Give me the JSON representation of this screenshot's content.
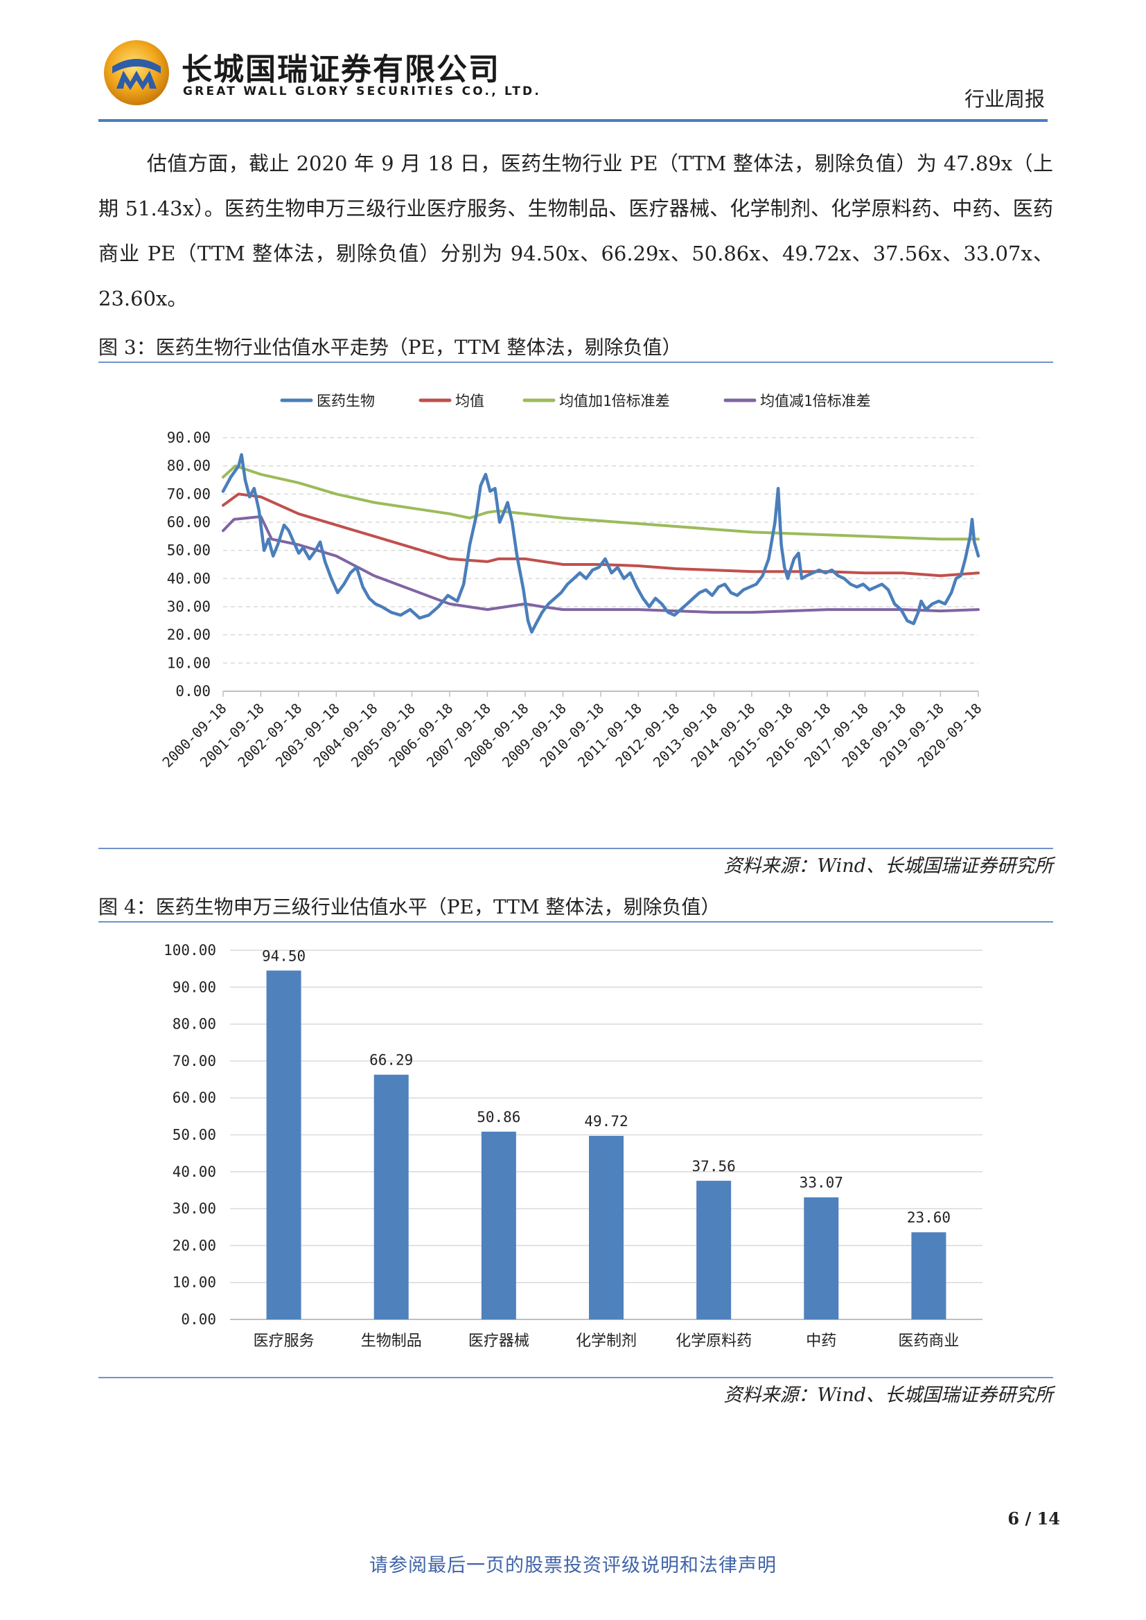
{
  "header": {
    "company_cn": "长城国瑞证券有限公司",
    "company_en": "GREAT WALL GLORY SECURITIES CO., LTD.",
    "report_type": "行业周报"
  },
  "body": {
    "paragraph": "估值方面，截止 2020 年 9 月 18 日，医药生物行业 PE（TTM 整体法，剔除负值）为 47.89x（上期 51.43x）。医药生物申万三级行业医疗服务、生物制品、医疗器械、化学制剂、化学原料药、中药、医药商业 PE（TTM 整体法，剔除负值）分别为 94.50x、66.29x、50.86x、49.72x、37.56x、33.07x、23.60x。"
  },
  "figure3": {
    "caption": "图 3：医药生物行业估值水平走势（PE，TTM 整体法，剔除负值）",
    "source": "资料来源：Wind、长城国瑞证券研究所"
  },
  "figure4": {
    "caption": "图 4：医药生物申万三级行业估值水平（PE，TTM 整体法，剔除负值）",
    "source": "资料来源：Wind、长城国瑞证券研究所"
  },
  "colors": {
    "series_blue": "#4a7ebb",
    "series_red": "#c0504d",
    "series_green": "#9bbb59",
    "series_purple": "#8064a2",
    "bar_blue": "#4f81bd",
    "rule_blue": "#4a7dc0"
  },
  "chart_data": [
    {
      "type": "line",
      "ylim": [
        0,
        90
      ],
      "yticks": [
        "0.00",
        "10.00",
        "20.00",
        "30.00",
        "40.00",
        "50.00",
        "60.00",
        "70.00",
        "80.00",
        "90.00"
      ],
      "x": [
        "2000-09-18",
        "2001-09-18",
        "2002-09-18",
        "2003-09-18",
        "2004-09-18",
        "2005-09-18",
        "2006-09-18",
        "2007-09-18",
        "2008-09-18",
        "2009-09-18",
        "2010-09-18",
        "2011-09-18",
        "2012-09-18",
        "2013-09-18",
        "2014-09-18",
        "2015-09-18",
        "2016-09-18",
        "2017-09-18",
        "2018-09-18",
        "2019-09-18",
        "2020-09-18"
      ],
      "grid": true,
      "legend": "top",
      "series": [
        {
          "name": "医药生物",
          "color": "#4a7ebb",
          "points": [
            [
              "2000-09-18",
              71
            ],
            [
              "2000-12-01",
              76
            ],
            [
              "2001-02-15",
              80
            ],
            [
              "2001-03-15",
              84
            ],
            [
              "2001-04-20",
              75
            ],
            [
              "2001-06-01",
              69
            ],
            [
              "2001-07-15",
              72
            ],
            [
              "2001-09-01",
              64
            ],
            [
              "2001-10-20",
              50
            ],
            [
              "2001-12-01",
              54
            ],
            [
              "2002-01-15",
              48
            ],
            [
              "2002-03-01",
              52
            ],
            [
              "2002-05-01",
              59
            ],
            [
              "2002-06-15",
              57
            ],
            [
              "2002-08-01",
              53
            ],
            [
              "2002-09-20",
              49
            ],
            [
              "2002-11-01",
              51
            ],
            [
              "2003-01-01",
              47
            ],
            [
              "2003-03-01",
              50
            ],
            [
              "2003-04-15",
              53
            ],
            [
              "2003-06-01",
              46
            ],
            [
              "2003-08-01",
              40
            ],
            [
              "2003-10-01",
              35
            ],
            [
              "2003-12-01",
              38
            ],
            [
              "2004-02-01",
              42
            ],
            [
              "2004-04-01",
              44
            ],
            [
              "2004-06-01",
              37
            ],
            [
              "2004-08-01",
              33
            ],
            [
              "2004-10-01",
              31
            ],
            [
              "2004-12-01",
              30
            ],
            [
              "2005-03-01",
              28
            ],
            [
              "2005-06-01",
              27
            ],
            [
              "2005-09-01",
              29
            ],
            [
              "2005-12-01",
              26
            ],
            [
              "2006-03-01",
              27
            ],
            [
              "2006-06-01",
              30
            ],
            [
              "2006-09-01",
              34
            ],
            [
              "2006-12-01",
              32
            ],
            [
              "2007-02-01",
              38
            ],
            [
              "2007-04-01",
              52
            ],
            [
              "2007-06-01",
              62
            ],
            [
              "2007-07-15",
              73
            ],
            [
              "2007-09-01",
              77
            ],
            [
              "2007-10-15",
              71
            ],
            [
              "2007-12-01",
              72
            ],
            [
              "2008-01-15",
              60
            ],
            [
              "2008-03-01",
              64
            ],
            [
              "2008-04-01",
              67
            ],
            [
              "2008-05-15",
              60
            ],
            [
              "2008-07-01",
              48
            ],
            [
              "2008-09-01",
              36
            ],
            [
              "2008-10-15",
              25
            ],
            [
              "2008-11-20",
              21
            ],
            [
              "2009-01-01",
              24
            ],
            [
              "2009-03-01",
              28
            ],
            [
              "2009-05-01",
              31
            ],
            [
              "2009-07-01",
              33
            ],
            [
              "2009-09-01",
              35
            ],
            [
              "2009-11-01",
              38
            ],
            [
              "2010-01-01",
              40
            ],
            [
              "2010-03-01",
              42
            ],
            [
              "2010-05-01",
              40
            ],
            [
              "2010-07-01",
              43
            ],
            [
              "2010-09-01",
              44
            ],
            [
              "2010-11-01",
              47
            ],
            [
              "2011-01-01",
              42
            ],
            [
              "2011-03-01",
              44
            ],
            [
              "2011-05-01",
              40
            ],
            [
              "2011-07-01",
              42
            ],
            [
              "2011-09-01",
              37
            ],
            [
              "2011-11-01",
              33
            ],
            [
              "2012-01-01",
              30
            ],
            [
              "2012-03-01",
              33
            ],
            [
              "2012-05-01",
              31
            ],
            [
              "2012-07-01",
              28
            ],
            [
              "2012-09-01",
              27
            ],
            [
              "2012-11-01",
              29
            ],
            [
              "2013-01-01",
              31
            ],
            [
              "2013-03-01",
              33
            ],
            [
              "2013-05-01",
              35
            ],
            [
              "2013-07-01",
              36
            ],
            [
              "2013-09-01",
              34
            ],
            [
              "2013-11-01",
              37
            ],
            [
              "2014-01-01",
              38
            ],
            [
              "2014-03-01",
              35
            ],
            [
              "2014-05-01",
              34
            ],
            [
              "2014-07-01",
              36
            ],
            [
              "2014-09-01",
              37
            ],
            [
              "2014-11-01",
              38
            ],
            [
              "2015-01-01",
              41
            ],
            [
              "2015-03-01",
              47
            ],
            [
              "2015-05-01",
              60
            ],
            [
              "2015-06-01",
              72
            ],
            [
              "2015-07-01",
              52
            ],
            [
              "2015-08-01",
              44
            ],
            [
              "2015-09-01",
              40
            ],
            [
              "2015-11-01",
              47
            ],
            [
              "2015-12-15",
              49
            ],
            [
              "2016-01-15",
              40
            ],
            [
              "2016-03-01",
              41
            ],
            [
              "2016-05-01",
              42
            ],
            [
              "2016-07-01",
              43
            ],
            [
              "2016-09-01",
              42
            ],
            [
              "2016-11-01",
              43
            ],
            [
              "2017-01-01",
              41
            ],
            [
              "2017-03-01",
              40
            ],
            [
              "2017-05-01",
              38
            ],
            [
              "2017-07-01",
              37
            ],
            [
              "2017-09-01",
              38
            ],
            [
              "2017-11-01",
              36
            ],
            [
              "2018-01-01",
              37
            ],
            [
              "2018-03-01",
              38
            ],
            [
              "2018-05-01",
              36
            ],
            [
              "2018-07-01",
              31
            ],
            [
              "2018-09-01",
              29
            ],
            [
              "2018-11-01",
              25
            ],
            [
              "2019-01-01",
              24
            ],
            [
              "2019-02-15",
              28
            ],
            [
              "2019-03-15",
              32
            ],
            [
              "2019-05-01",
              29
            ],
            [
              "2019-07-01",
              31
            ],
            [
              "2019-09-01",
              32
            ],
            [
              "2019-11-01",
              31
            ],
            [
              "2020-01-01",
              35
            ],
            [
              "2020-02-15",
              40
            ],
            [
              "2020-04-01",
              41
            ],
            [
              "2020-05-15",
              47
            ],
            [
              "2020-07-01",
              55
            ],
            [
              "2020-07-20",
              61
            ],
            [
              "2020-08-10",
              53
            ],
            [
              "2020-09-18",
              48
            ]
          ]
        },
        {
          "name": "均值",
          "color": "#c0504d",
          "points": [
            [
              "2000-09-18",
              66
            ],
            [
              "2001-02-15",
              70
            ],
            [
              "2001-09-18",
              69
            ],
            [
              "2002-09-18",
              63
            ],
            [
              "2003-09-18",
              59
            ],
            [
              "2004-09-18",
              55
            ],
            [
              "2005-09-18",
              51
            ],
            [
              "2006-09-18",
              47
            ],
            [
              "2007-09-18",
              46
            ],
            [
              "2008-01-01",
              47
            ],
            [
              "2008-09-18",
              47
            ],
            [
              "2009-09-18",
              45
            ],
            [
              "2010-09-18",
              45
            ],
            [
              "2011-09-18",
              44.5
            ],
            [
              "2012-09-18",
              43.5
            ],
            [
              "2013-09-18",
              43
            ],
            [
              "2014-09-18",
              42.5
            ],
            [
              "2015-09-18",
              42.5
            ],
            [
              "2016-09-18",
              42.5
            ],
            [
              "2017-09-18",
              42
            ],
            [
              "2018-09-18",
              42
            ],
            [
              "2019-09-18",
              41
            ],
            [
              "2020-09-18",
              42
            ]
          ]
        },
        {
          "name": "均值加1倍标准差",
          "color": "#9bbb59",
          "points": [
            [
              "2000-09-18",
              76
            ],
            [
              "2001-01-15",
              80
            ],
            [
              "2001-09-18",
              77
            ],
            [
              "2002-09-18",
              74
            ],
            [
              "2003-09-18",
              70
            ],
            [
              "2004-09-18",
              67
            ],
            [
              "2005-09-18",
              65
            ],
            [
              "2006-09-18",
              63
            ],
            [
              "2007-04-01",
              61.5
            ],
            [
              "2007-09-18",
              63.5
            ],
            [
              "2008-01-01",
              64
            ],
            [
              "2008-09-18",
              63
            ],
            [
              "2009-09-18",
              61.5
            ],
            [
              "2010-09-18",
              60.5
            ],
            [
              "2011-09-18",
              59.5
            ],
            [
              "2012-09-18",
              58.5
            ],
            [
              "2013-09-18",
              57.5
            ],
            [
              "2014-09-18",
              56.5
            ],
            [
              "2015-09-18",
              56
            ],
            [
              "2016-09-18",
              55.5
            ],
            [
              "2017-09-18",
              55
            ],
            [
              "2018-09-18",
              54.5
            ],
            [
              "2019-09-18",
              54
            ],
            [
              "2020-09-18",
              54
            ]
          ]
        },
        {
          "name": "均值减1倍标准差",
          "color": "#8064a2",
          "points": [
            [
              "2000-09-18",
              57
            ],
            [
              "2001-01-01",
              61
            ],
            [
              "2001-09-18",
              62
            ],
            [
              "2002-01-01",
              54
            ],
            [
              "2002-09-18",
              52
            ],
            [
              "2003-09-18",
              48
            ],
            [
              "2004-09-18",
              41
            ],
            [
              "2005-09-18",
              36
            ],
            [
              "2006-09-18",
              31
            ],
            [
              "2007-09-18",
              29
            ],
            [
              "2008-09-18",
              31
            ],
            [
              "2009-03-01",
              30
            ],
            [
              "2009-09-18",
              29
            ],
            [
              "2010-09-18",
              29
            ],
            [
              "2011-09-18",
              29
            ],
            [
              "2012-09-18",
              28.5
            ],
            [
              "2013-09-18",
              28
            ],
            [
              "2014-09-18",
              28
            ],
            [
              "2015-09-18",
              28.5
            ],
            [
              "2016-09-18",
              29
            ],
            [
              "2017-09-18",
              29
            ],
            [
              "2018-09-18",
              29
            ],
            [
              "2019-09-18",
              28.5
            ],
            [
              "2020-09-18",
              29
            ]
          ]
        }
      ]
    },
    {
      "type": "bar",
      "categories": [
        "医疗服务",
        "生物制品",
        "医疗器械",
        "化学制剂",
        "化学原料药",
        "中药",
        "医药商业"
      ],
      "values": [
        94.5,
        66.29,
        50.86,
        49.72,
        37.56,
        33.07,
        23.6
      ],
      "value_labels": [
        "94.50",
        "66.29",
        "50.86",
        "49.72",
        "37.56",
        "33.07",
        "23.60"
      ],
      "ylim": [
        0,
        100
      ],
      "yticks": [
        "0.00",
        "10.00",
        "20.00",
        "30.00",
        "40.00",
        "50.00",
        "60.00",
        "70.00",
        "80.00",
        "90.00",
        "100.00"
      ],
      "grid": true,
      "color": "#4f81bd"
    }
  ],
  "page": {
    "number": "6 / 14"
  },
  "footer": {
    "text": "请参阅最后一页的股票投资评级说明和法律声明"
  }
}
